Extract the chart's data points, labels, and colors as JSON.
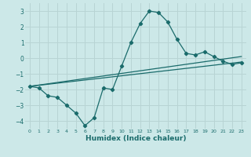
{
  "xlabel": "Humidex (Indice chaleur)",
  "background_color": "#cce8e8",
  "grid_color": "#b8d4d4",
  "line_color": "#1a6b6b",
  "xlim": [
    -0.5,
    23.5
  ],
  "ylim": [
    -4.5,
    3.5
  ],
  "yticks": [
    -4,
    -3,
    -2,
    -1,
    0,
    1,
    2,
    3
  ],
  "xticks": [
    0,
    1,
    2,
    3,
    4,
    5,
    6,
    7,
    8,
    9,
    10,
    11,
    12,
    13,
    14,
    15,
    16,
    17,
    18,
    19,
    20,
    21,
    22,
    23
  ],
  "curve1_x": [
    0,
    1,
    2,
    3,
    4,
    5,
    6,
    7,
    8,
    9,
    10,
    11,
    12,
    13,
    14,
    15,
    16,
    17,
    18,
    19,
    20,
    21,
    22,
    23
  ],
  "curve1_y": [
    -1.8,
    -1.9,
    -2.4,
    -2.5,
    -3.0,
    -3.5,
    -4.3,
    -3.8,
    -1.9,
    -2.0,
    -0.5,
    1.0,
    2.2,
    3.0,
    2.9,
    2.3,
    1.2,
    0.3,
    0.2,
    0.4,
    0.1,
    -0.2,
    -0.4,
    -0.3
  ],
  "line2_x": [
    0,
    23
  ],
  "line2_y": [
    -1.8,
    -0.25
  ],
  "line3_x": [
    0,
    23
  ],
  "line3_y": [
    -1.8,
    0.1
  ]
}
